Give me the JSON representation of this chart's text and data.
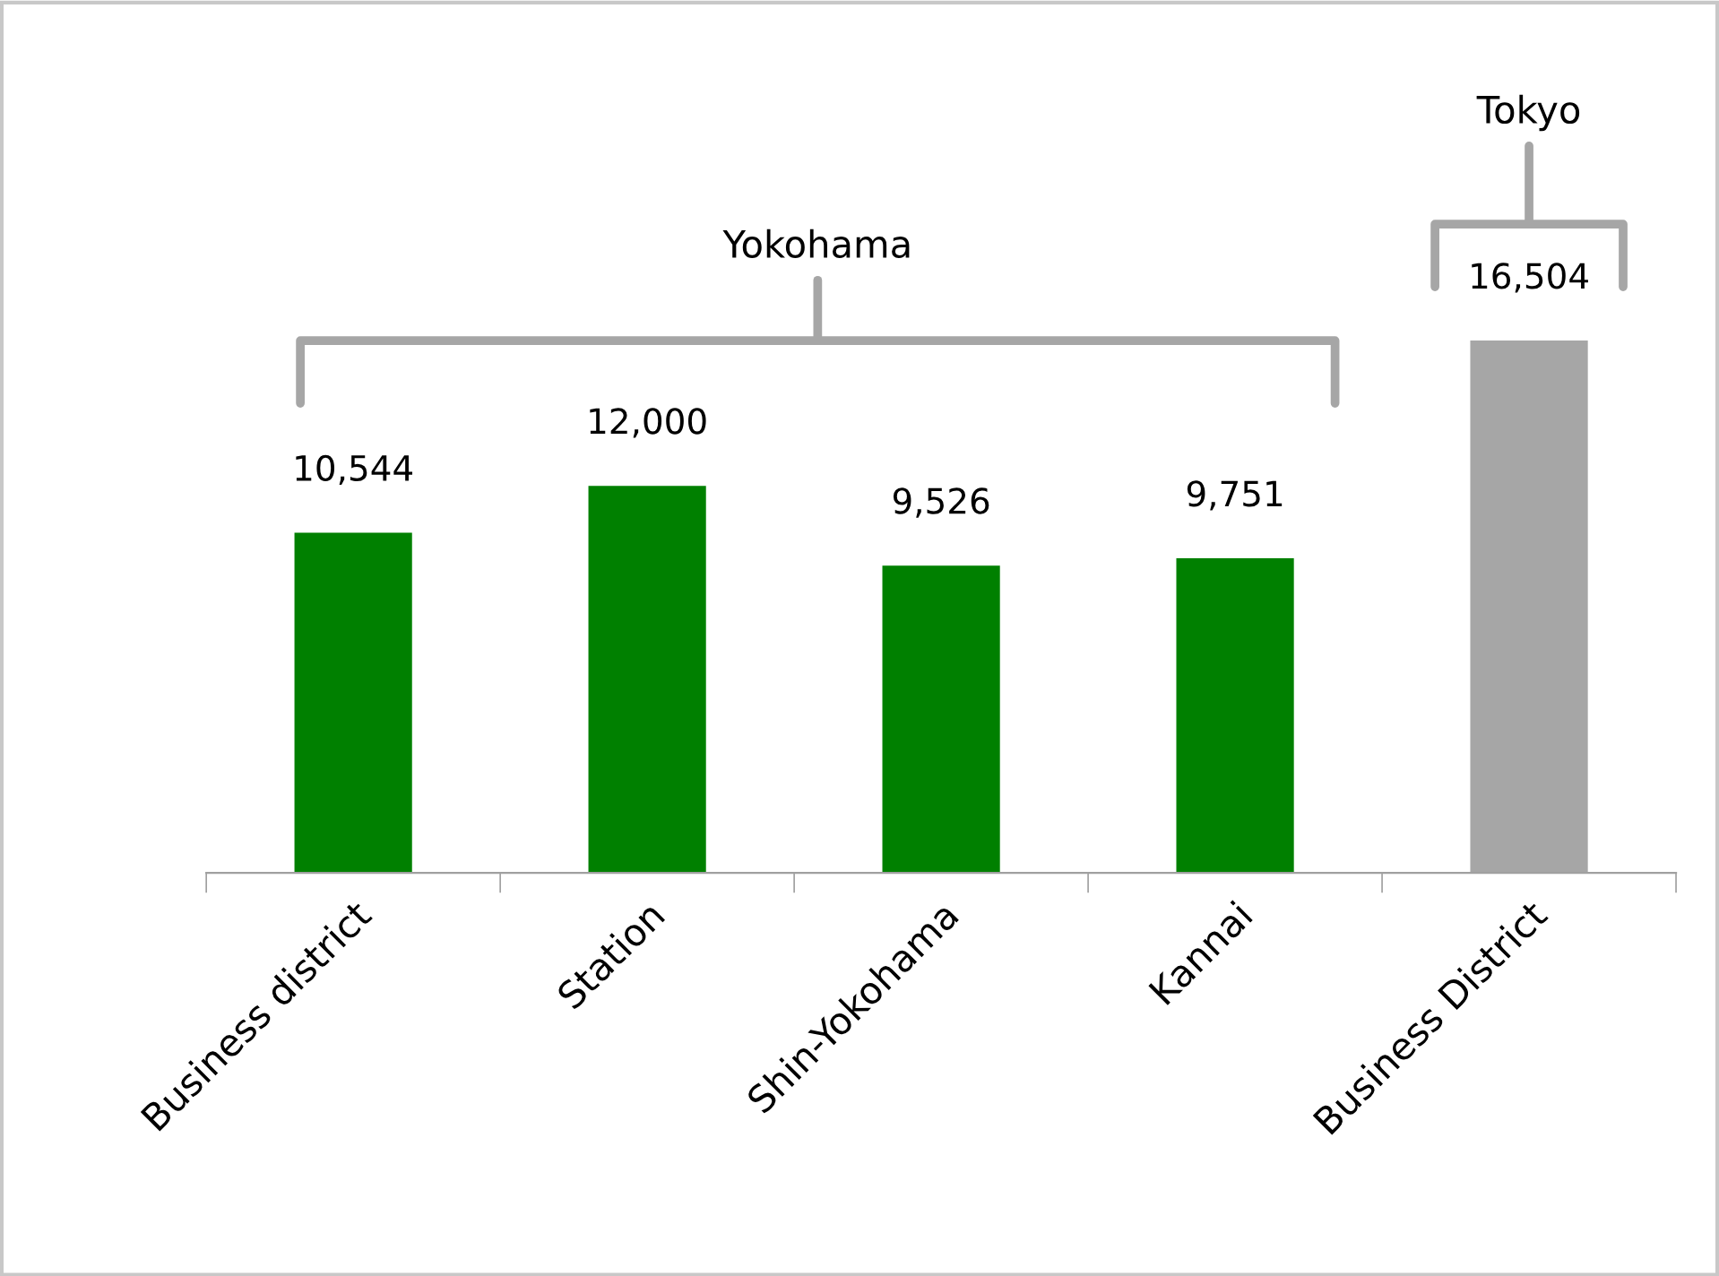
{
  "chart_data": {
    "type": "bar",
    "categories": [
      "Business district",
      "Station",
      "Shin-Yokohama",
      "Kannai",
      "Business District"
    ],
    "values": [
      10544,
      12000,
      9526,
      9751,
      16504
    ],
    "colors": [
      "#008000",
      "#008000",
      "#008000",
      "#008000",
      "#a6a6a6"
    ],
    "value_labels": [
      "10,544",
      "12,000",
      "9,526",
      "9,751",
      "16,504"
    ],
    "annotations": [
      "Yokohama",
      "Tokyo"
    ],
    "grid": false,
    "legend": false
  }
}
